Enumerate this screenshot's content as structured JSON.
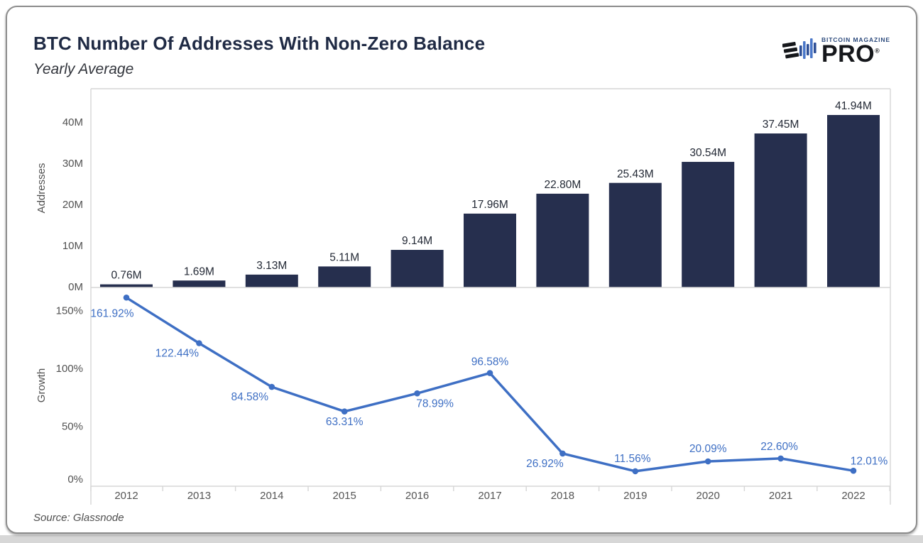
{
  "logo": {
    "top_text": "BITCOIN MAGAZINE",
    "main_text": "PRO",
    "registered_mark": "®"
  },
  "colors": {
    "bar": "#262f4e",
    "bar_label": "#232935",
    "line": "#3e6fc4",
    "title_navy": "#1f2a44",
    "axis_text": "#515151",
    "plot_border": "#d6d6d6",
    "logo_blue_dark": "#2e4f96",
    "logo_blue_light": "#4a77c9",
    "logo_black": "#15171b"
  },
  "chart_data": {
    "type": "combo",
    "title": "BTC Number Of Addresses With Non-Zero Balance",
    "subtitle": "Yearly Average",
    "source": "Source: Glassnode",
    "legend": "none",
    "grid": "off",
    "categories": [
      "2012",
      "2013",
      "2014",
      "2015",
      "2016",
      "2017",
      "2018",
      "2019",
      "2020",
      "2021",
      "2022"
    ],
    "panels": [
      {
        "type": "bar",
        "name": "addresses",
        "ylabel": "Addresses",
        "unit": "M",
        "values": [
          0.76,
          1.69,
          3.13,
          5.11,
          9.14,
          17.96,
          22.8,
          25.43,
          30.54,
          37.45,
          41.94
        ],
        "labels": [
          "0.76M",
          "1.69M",
          "3.13M",
          "5.11M",
          "9.14M",
          "17.96M",
          "22.80M",
          "25.43M",
          "30.54M",
          "37.45M",
          "41.94M"
        ],
        "yticks": [
          {
            "v": 0,
            "label": "0M"
          },
          {
            "v": 10,
            "label": "10M"
          },
          {
            "v": 20,
            "label": "20M"
          },
          {
            "v": 30,
            "label": "30M"
          },
          {
            "v": 40,
            "label": "40M"
          }
        ],
        "ylim": [
          0,
          48.3
        ]
      },
      {
        "type": "line",
        "name": "growth",
        "ylabel": "Growth",
        "unit": "%",
        "values": [
          161.92,
          122.44,
          84.58,
          63.31,
          78.99,
          96.58,
          26.92,
          11.56,
          20.09,
          22.6,
          12.01
        ],
        "labels": [
          "161.92%",
          "122.44%",
          "84.58%",
          "63.31%",
          "78.99%",
          "96.58%",
          "26.92%",
          "11.56%",
          "20.09%",
          "22.60%",
          "12.01%"
        ],
        "yticks": [
          {
            "v": 0,
            "label": "0%"
          },
          {
            "v": 50,
            "label": "50%"
          },
          {
            "v": 100,
            "label": "100%"
          },
          {
            "v": 150,
            "label": "150%"
          }
        ],
        "ylim": [
          0,
          170.7
        ]
      }
    ]
  }
}
